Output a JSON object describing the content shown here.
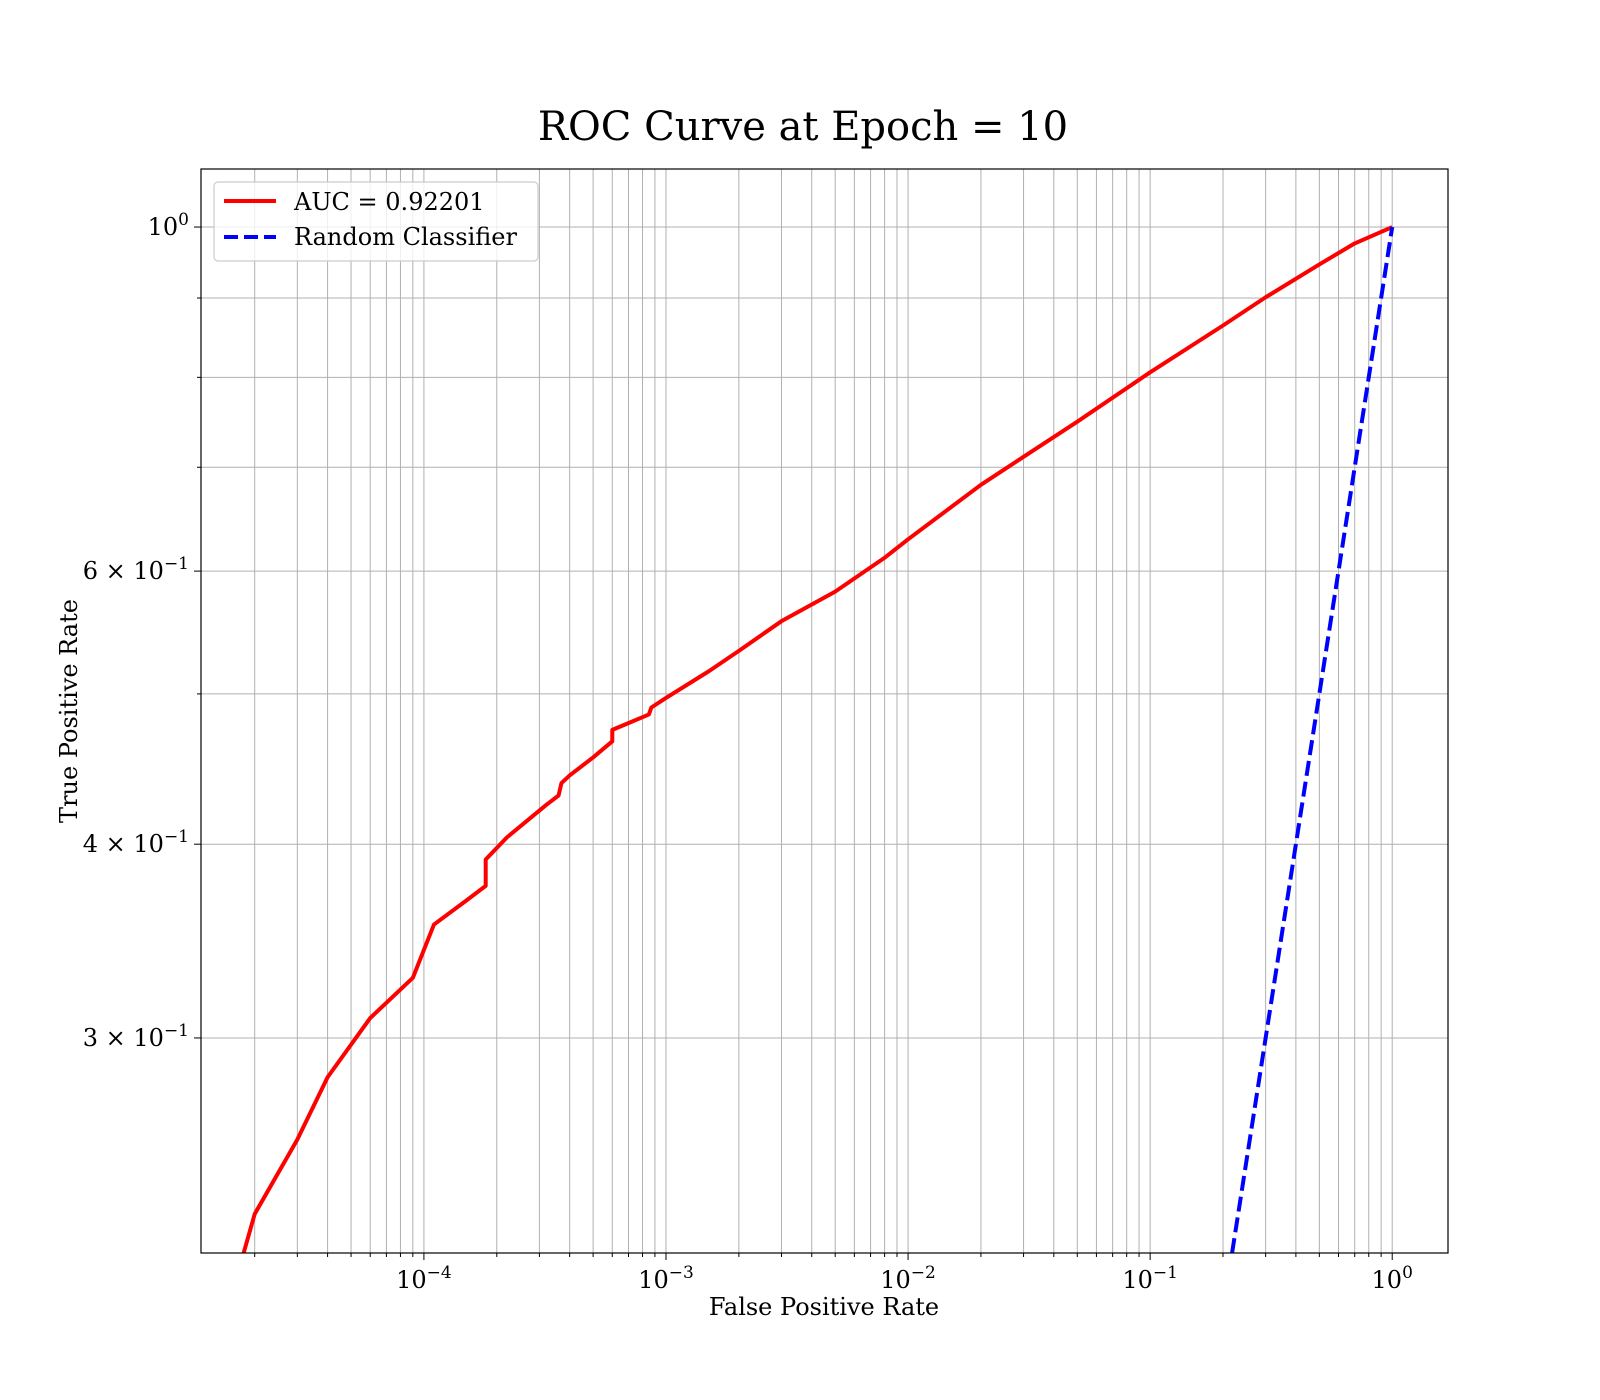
{
  "chart_data": {
    "type": "line",
    "title": "ROC Curve at Epoch = 10",
    "xlabel": "False Positive Rate",
    "ylabel": "True Positive Rate",
    "xscale": "log",
    "yscale": "log",
    "xlim": [
      1.2e-05,
      1.7
    ],
    "ylim": [
      0.218,
      1.09
    ],
    "grid": {
      "major": true,
      "minor": true
    },
    "legend_position": "top-left",
    "x_ticks": [
      {
        "value": 0.0001,
        "base": "10",
        "exp": "−4"
      },
      {
        "value": 0.001,
        "base": "10",
        "exp": "−3"
      },
      {
        "value": 0.01,
        "base": "10",
        "exp": "−2"
      },
      {
        "value": 0.1,
        "base": "10",
        "exp": "−1"
      },
      {
        "value": 1,
        "base": "10",
        "exp": "0"
      }
    ],
    "y_ticks": [
      {
        "value": 1,
        "mantissa": "",
        "base": "10",
        "exp": "0"
      },
      {
        "value": 0.6,
        "mantissa": "6 × ",
        "base": "10",
        "exp": "−1"
      },
      {
        "value": 0.4,
        "mantissa": "4 × ",
        "base": "10",
        "exp": "−1"
      },
      {
        "value": 0.3,
        "mantissa": "3 × ",
        "base": "10",
        "exp": "−1"
      }
    ],
    "y_minor_ticks": [
      0.5,
      0.7,
      0.8,
      0.9
    ],
    "series": [
      {
        "name": "AUC = 0.92201",
        "color": "#ff0000",
        "style": "solid",
        "x": [
          1.8e-05,
          2e-05,
          3e-05,
          4e-05,
          6e-05,
          9e-05,
          0.00011,
          0.00015,
          0.00018,
          0.00018,
          0.00022,
          0.00032,
          0.00036,
          0.00037,
          0.0004,
          0.0005,
          0.0006,
          0.0006,
          0.0008,
          0.00085,
          0.00087,
          0.001,
          0.0015,
          0.002,
          0.003,
          0.005,
          0.008,
          0.01,
          0.02,
          0.03,
          0.05,
          0.1,
          0.2,
          0.3,
          0.5,
          0.7,
          1.0
        ],
        "y": [
          0.218,
          0.231,
          0.258,
          0.283,
          0.309,
          0.328,
          0.355,
          0.368,
          0.376,
          0.391,
          0.404,
          0.424,
          0.43,
          0.438,
          0.443,
          0.455,
          0.466,
          0.474,
          0.483,
          0.485,
          0.49,
          0.497,
          0.517,
          0.533,
          0.557,
          0.582,
          0.612,
          0.629,
          0.682,
          0.711,
          0.749,
          0.806,
          0.864,
          0.901,
          0.946,
          0.976,
          1.0
        ]
      },
      {
        "name": "Random Classifier",
        "color": "#0000ff",
        "style": "dashed",
        "x": [
          0.218,
          1.0
        ],
        "y": [
          0.218,
          1.0
        ]
      }
    ]
  }
}
